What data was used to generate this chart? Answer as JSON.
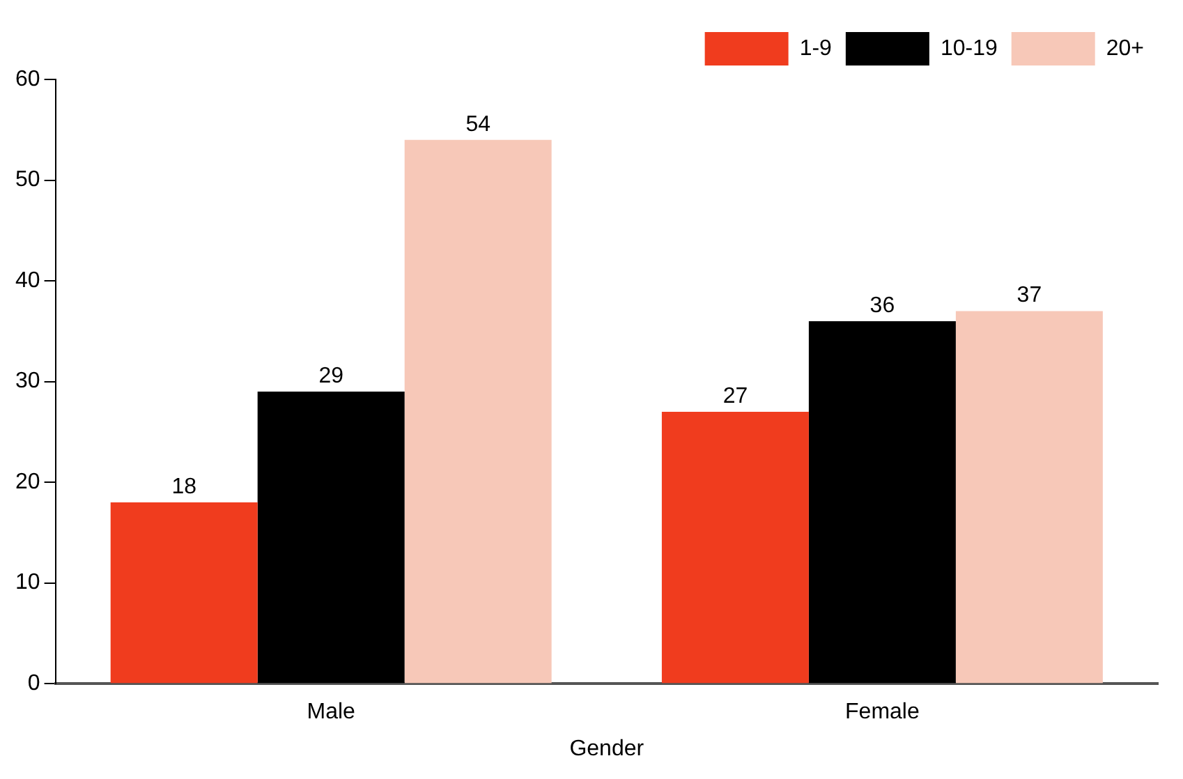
{
  "chart_data": {
    "type": "bar",
    "xlabel": "Gender",
    "categories": [
      "Male",
      "Female"
    ],
    "series": [
      {
        "name": "1-9",
        "color": "#f03c1e",
        "values": [
          18,
          27
        ]
      },
      {
        "name": "10-19",
        "color": "#000000",
        "values": [
          29,
          36
        ]
      },
      {
        "name": "20+",
        "color": "#f7c8b8",
        "values": [
          54,
          37
        ]
      }
    ],
    "ylim": [
      0,
      60
    ],
    "yticks": [
      0,
      10,
      20,
      30,
      40,
      50,
      60
    ],
    "grid": false,
    "legend": "top right",
    "data_labels": true
  }
}
